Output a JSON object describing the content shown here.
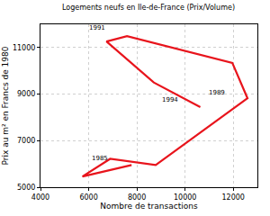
{
  "chart_data": {
    "type": "line",
    "title": "Logements neufs en Ile-de-France (Prix/Volume)",
    "x_label": "Nombre de transactions",
    "y_label": "Prix au m² en Francs de 1980",
    "x": [
      7780,
      5740,
      6890,
      8780,
      12590,
      11960,
      7590,
      6740,
      8700,
      10630
    ],
    "values": [
      5950,
      5460,
      6220,
      5950,
      8820,
      10340,
      11490,
      11260,
      9500,
      8440
    ],
    "color": "#e8141c",
    "xlim": [
      4000,
      13000
    ],
    "xticks": [
      4000,
      6000,
      8000,
      10000,
      12000
    ],
    "ylim": [
      5000,
      12000
    ],
    "yticks": [
      5000,
      7000,
      9000,
      11000
    ],
    "grid": true,
    "annotations": [
      {
        "text": "1991",
        "x": 6370,
        "y": 11830
      },
      {
        "text": "1989",
        "x": 11330,
        "y": 9080
      },
      {
        "text": "1994",
        "x": 9370,
        "y": 8740
      },
      {
        "text": "1985",
        "x": 6480,
        "y": 6220
      }
    ]
  }
}
